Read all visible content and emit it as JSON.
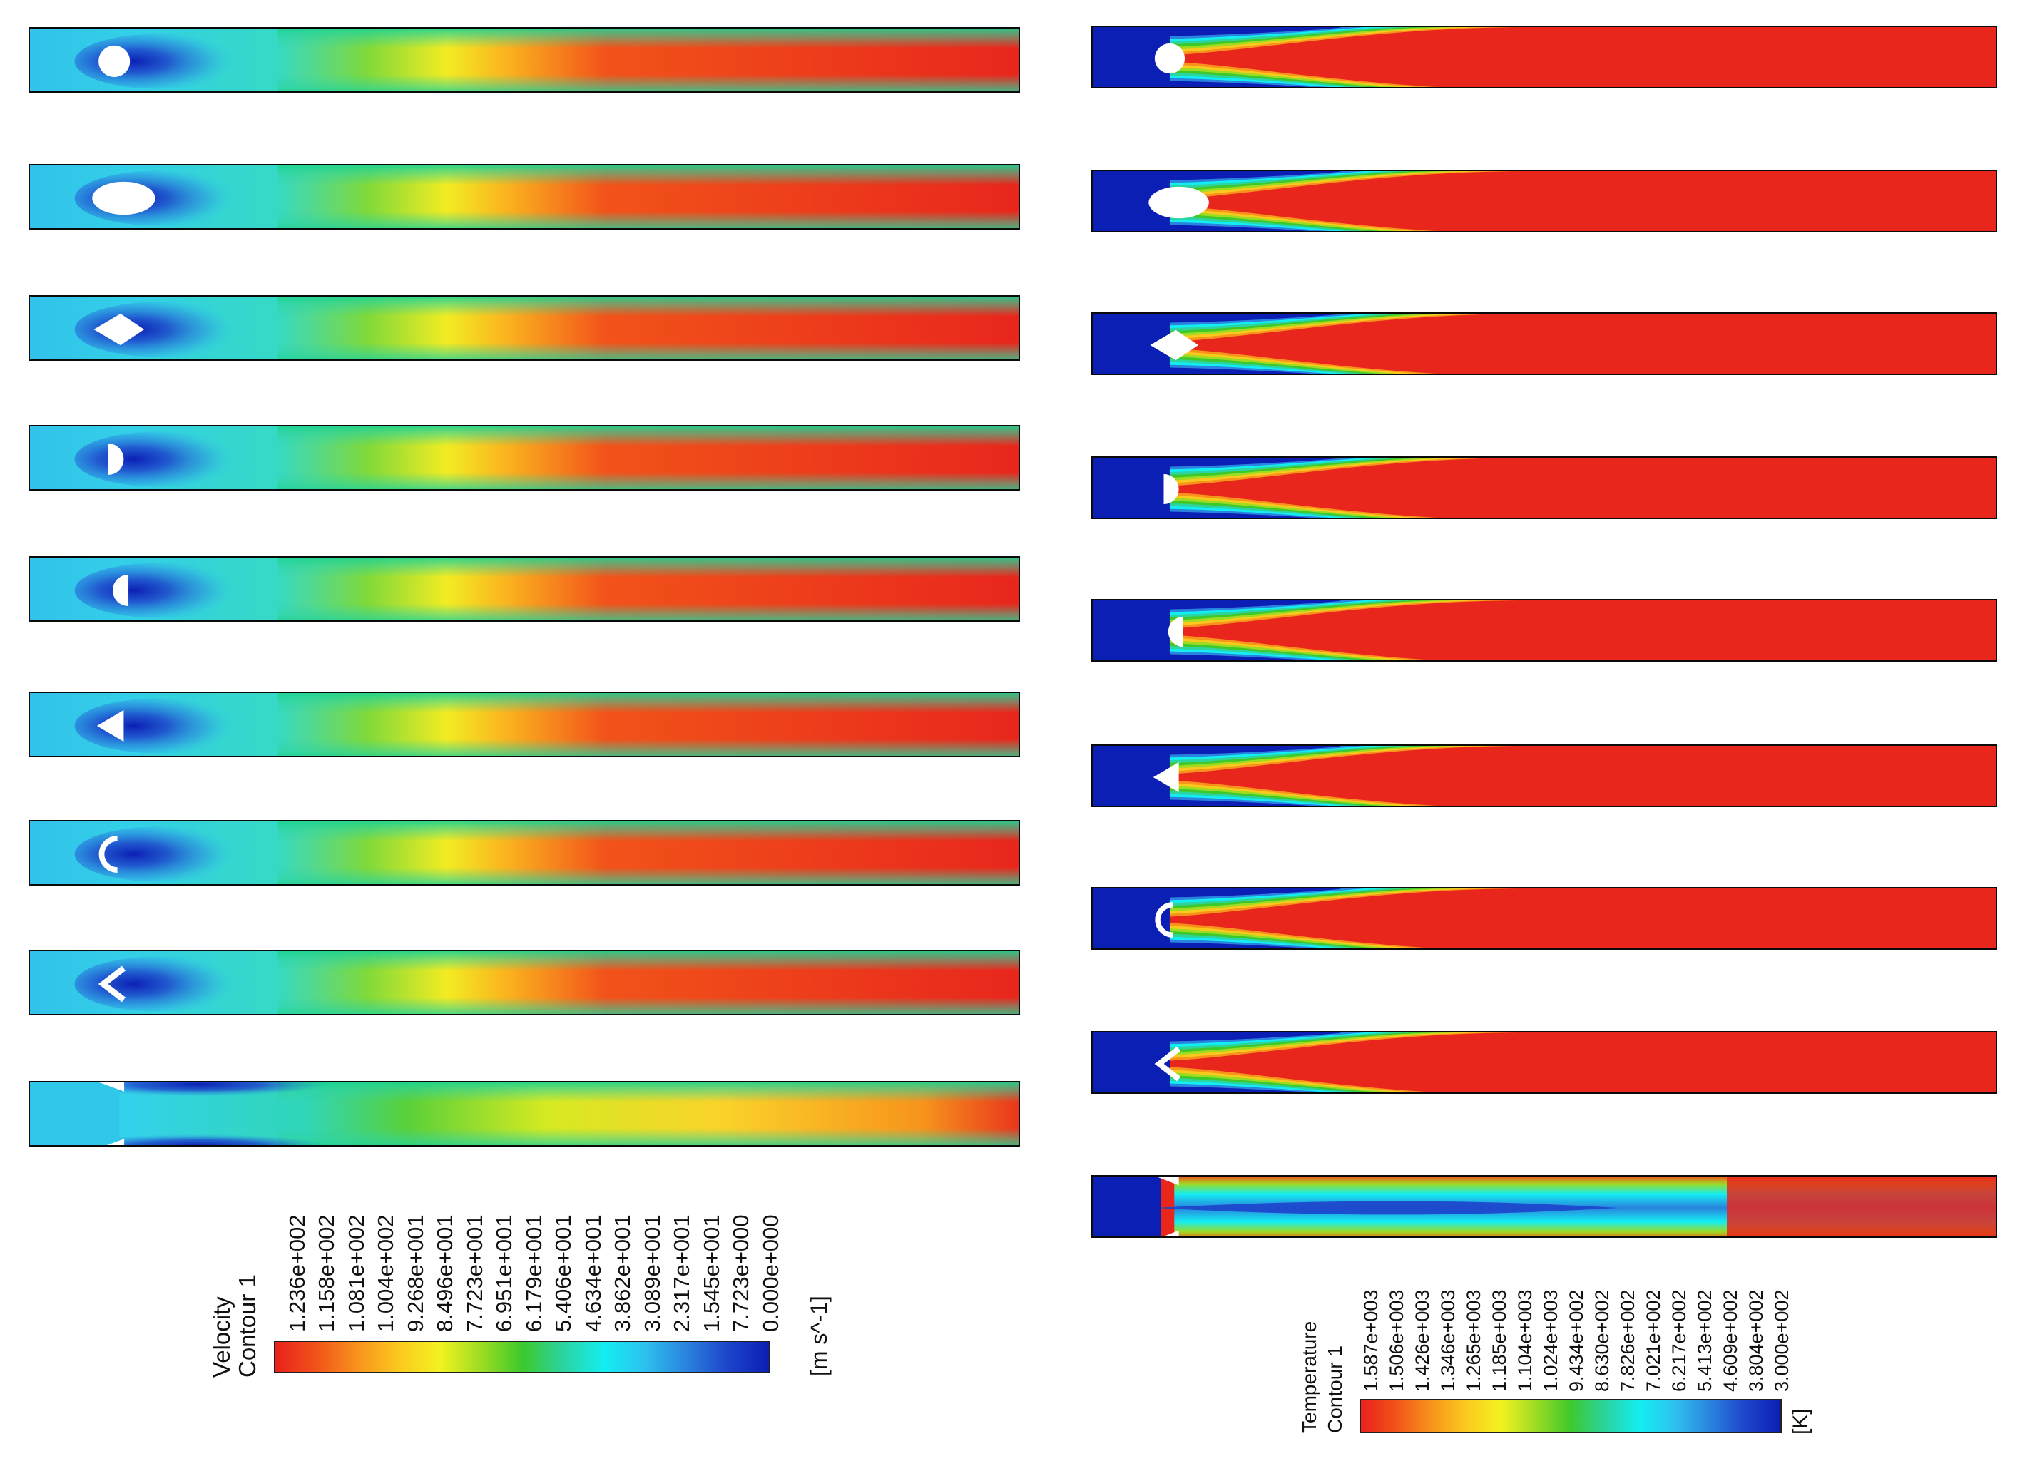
{
  "figure": {
    "panels": [
      {
        "id": "velocity",
        "variable": "Velocity",
        "cases": [
          "circle",
          "ellipse",
          "diamond",
          "semicircle-flat-front",
          "semicircle-flat-back",
          "triangle-apex-upstream",
          "concave-arc",
          "chevron",
          "wall-constriction"
        ]
      },
      {
        "id": "temperature",
        "variable": "Temperature",
        "cases": [
          "circle",
          "ellipse",
          "diamond",
          "semicircle-flat-front",
          "semicircle-flat-back",
          "triangle-apex-upstream",
          "concave-arc",
          "chevron",
          "wall-constriction"
        ]
      }
    ]
  },
  "legends": {
    "velocity": {
      "title": "Velocity",
      "subtitle": "Contour 1",
      "unit": "[m s^-1]",
      "ticks": [
        "1.236e+002",
        "1.158e+002",
        "1.081e+002",
        "1.004e+002",
        "9.268e+001",
        "8.496e+001",
        "7.723e+001",
        "6.951e+001",
        "6.179e+001",
        "5.406e+001",
        "4.634e+001",
        "3.862e+001",
        "3.089e+001",
        "2.317e+001",
        "1.545e+001",
        "7.723e+000",
        "0.000e+000"
      ]
    },
    "temperature": {
      "title": "Temperature",
      "subtitle": "Contour 1",
      "unit": "[K]",
      "ticks": [
        "1.587e+003",
        "1.506e+003",
        "1.426e+003",
        "1.346e+003",
        "1.265e+003",
        "1.185e+003",
        "1.104e+003",
        "1.024e+003",
        "9.434e+002",
        "8.630e+002",
        "7.826e+002",
        "7.021e+002",
        "6.217e+002",
        "5.413e+002",
        "4.609e+002",
        "3.804e+002",
        "3.000e+002"
      ]
    }
  },
  "colors": {
    "colormap": [
      "#e8211c",
      "#f2531a",
      "#f8931c",
      "#fbc91e",
      "#f3f221",
      "#9ddc22",
      "#3dc92c",
      "#2bd4a0",
      "#13eef2",
      "#2ec0ee",
      "#2a83de",
      "#1d44cb",
      "#0c1fb4"
    ],
    "background": "#ffffff",
    "outline": "#0a0a0a"
  }
}
